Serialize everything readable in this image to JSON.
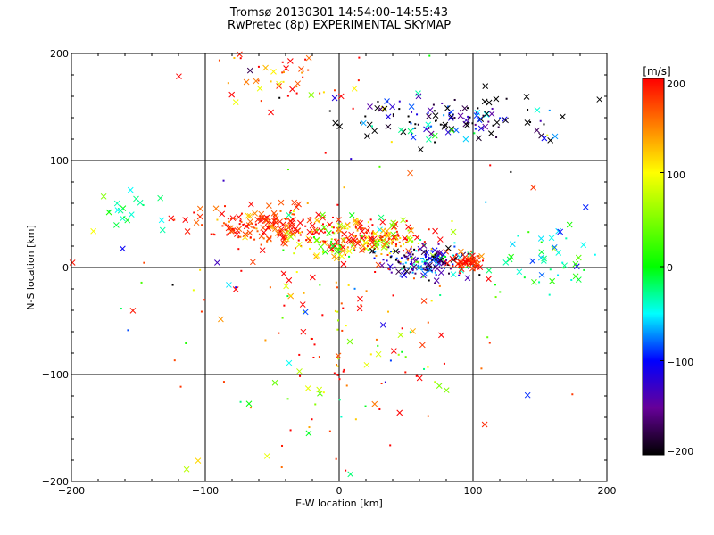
{
  "chart_data": {
    "type": "scatter",
    "title": "Tromsø 20130301 14:54:00–14:55:43",
    "subtitle": "RwPretec (8p) EXPERIMENTAL SKYMAP",
    "xlabel": "E-W location [km]",
    "ylabel": "N-S location [km]",
    "xlim": [
      -200,
      200
    ],
    "ylim": [
      -200,
      200
    ],
    "xticks": [
      "−200",
      "−100",
      "0",
      "100",
      "200"
    ],
    "yticks": [
      "−200",
      "−100",
      "0",
      "100",
      "200"
    ],
    "grid": true,
    "colorbar": {
      "label": "[m/s]",
      "range": [
        -200,
        200
      ],
      "ticks": [
        "200",
        "100",
        "0",
        "−100",
        "−200"
      ]
    },
    "markers": [
      "cross",
      "dot"
    ],
    "clusters": [
      {
        "cx": -55,
        "cy": 40,
        "sx": 25,
        "sy": 9,
        "vel_mean": 185,
        "vel_sd": 40,
        "n": 180,
        "cross_frac": 0.55
      },
      {
        "cx": 20,
        "cy": 25,
        "sx": 25,
        "sy": 9,
        "vel_mean": 140,
        "vel_sd": 80,
        "n": 260,
        "cross_frac": 0.45
      },
      {
        "cx": 65,
        "cy": 5,
        "sx": 16,
        "sy": 8,
        "vel_mean": -130,
        "vel_sd": 60,
        "n": 180,
        "cross_frac": 0.3
      },
      {
        "cx": 97,
        "cy": 5,
        "sx": 7,
        "sy": 4,
        "vel_mean": 185,
        "vel_sd": 20,
        "n": 60,
        "cross_frac": 0.55
      },
      {
        "cx": 80,
        "cy": 140,
        "sx": 40,
        "sy": 12,
        "vel_mean": -170,
        "vel_sd": 90,
        "n": 140,
        "cross_frac": 0.5
      },
      {
        "cx": -40,
        "cy": 175,
        "sx": 28,
        "sy": 15,
        "vel_mean": 170,
        "vel_sd": 50,
        "n": 45,
        "cross_frac": 0.5
      },
      {
        "cx": 160,
        "cy": 5,
        "sx": 22,
        "sy": 14,
        "vel_mean": -30,
        "vel_sd": 45,
        "n": 45,
        "cross_frac": 0.6
      },
      {
        "cx": -155,
        "cy": 55,
        "sx": 12,
        "sy": 12,
        "vel_mean": -25,
        "vel_sd": 20,
        "n": 18,
        "cross_frac": 0.8
      },
      {
        "cx": -10,
        "cy": -70,
        "sx": 55,
        "sy": 45,
        "vel_mean": 150,
        "vel_sd": 90,
        "n": 120,
        "cross_frac": 0.3
      },
      {
        "cx": 0,
        "cy": 0,
        "sx": 120,
        "sy": 110,
        "vel_mean": 50,
        "vel_sd": 170,
        "n": 90,
        "cross_frac": 0.5
      }
    ]
  }
}
